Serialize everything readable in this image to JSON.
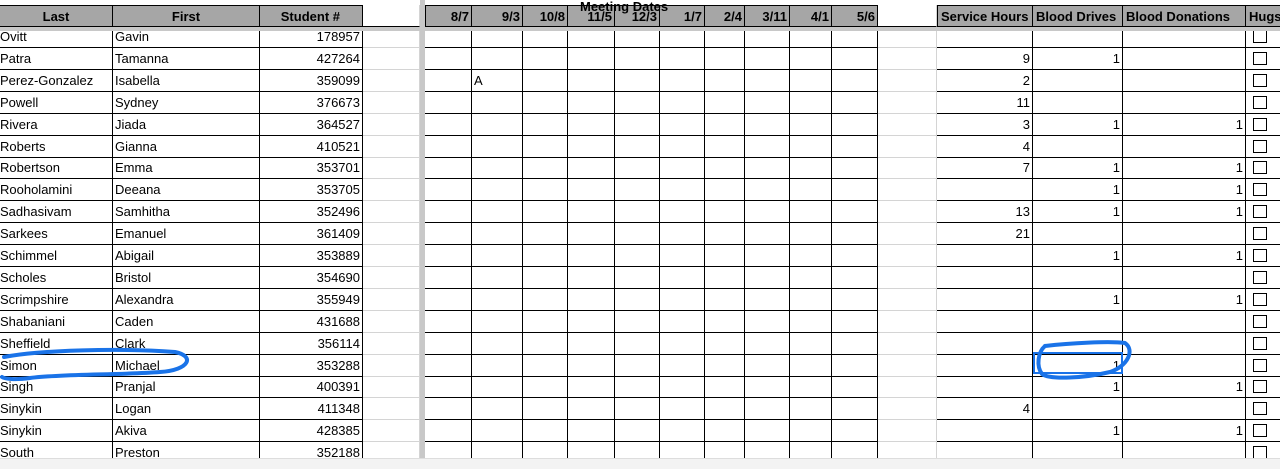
{
  "header": {
    "group_title": "Meeting Dates",
    "last": "Last",
    "first": "First",
    "student": "Student #",
    "dates": [
      "8/7",
      "9/3",
      "10/8",
      "11/5",
      "12/3",
      "1/7",
      "2/4",
      "3/11",
      "4/1",
      "5/6"
    ],
    "service_hours": "Service Hours",
    "blood_drives": "Blood Drives",
    "blood_donations": "Blood Donations",
    "hugs": "Hugs"
  },
  "rows": [
    {
      "last": "Ovitt",
      "first": "Gavin",
      "id": "178957",
      "att": {},
      "hours": "",
      "drives": "",
      "donations": ""
    },
    {
      "last": "Patra",
      "first": "Tamanna",
      "id": "427264",
      "att": {},
      "hours": "9",
      "drives": "1",
      "donations": ""
    },
    {
      "last": "Perez-Gonzalez",
      "first": "Isabella",
      "id": "359099",
      "att": {
        "9/3": "A"
      },
      "hours": "2",
      "drives": "",
      "donations": ""
    },
    {
      "last": "Powell",
      "first": "Sydney",
      "id": "376673",
      "att": {},
      "hours": "11",
      "drives": "",
      "donations": ""
    },
    {
      "last": "Rivera",
      "first": "Jiada",
      "id": "364527",
      "att": {},
      "hours": "3",
      "drives": "1",
      "donations": "1"
    },
    {
      "last": "Roberts",
      "first": "Gianna",
      "id": "410521",
      "att": {},
      "hours": "4",
      "drives": "",
      "donations": ""
    },
    {
      "last": "Robertson",
      "first": "Emma",
      "id": "353701",
      "att": {},
      "hours": "7",
      "drives": "1",
      "donations": "1"
    },
    {
      "last": "Rooholamini",
      "first": "Deeana",
      "id": "353705",
      "att": {},
      "hours": "",
      "drives": "1",
      "donations": "1"
    },
    {
      "last": "Sadhasivam",
      "first": "Samhitha",
      "id": "352496",
      "att": {},
      "hours": "13",
      "drives": "1",
      "donations": "1"
    },
    {
      "last": "Sarkees",
      "first": "Emanuel",
      "id": "361409",
      "att": {},
      "hours": "21",
      "drives": "",
      "donations": ""
    },
    {
      "last": "Schimmel",
      "first": "Abigail",
      "id": "353889",
      "att": {},
      "hours": "",
      "drives": "1",
      "donations": "1"
    },
    {
      "last": "Scholes",
      "first": "Bristol",
      "id": "354690",
      "att": {},
      "hours": "",
      "drives": "",
      "donations": ""
    },
    {
      "last": "Scrimpshire",
      "first": "Alexandra",
      "id": "355949",
      "att": {},
      "hours": "",
      "drives": "1",
      "donations": "1"
    },
    {
      "last": "Shabaniani",
      "first": "Caden",
      "id": "431688",
      "att": {},
      "hours": "",
      "drives": "",
      "donations": ""
    },
    {
      "last": "Sheffield",
      "first": "Clark",
      "id": "356114",
      "att": {},
      "hours": "",
      "drives": "",
      "donations": ""
    },
    {
      "last": "Simon",
      "first": "Michael",
      "id": "353288",
      "att": {},
      "hours": "",
      "drives": "1",
      "donations": ""
    },
    {
      "last": "Singh",
      "first": "Pranjal",
      "id": "400391",
      "att": {},
      "hours": "",
      "drives": "1",
      "donations": "1"
    },
    {
      "last": "Sinykin",
      "first": "Logan",
      "id": "411348",
      "att": {},
      "hours": "4",
      "drives": "",
      "donations": ""
    },
    {
      "last": "Sinykin",
      "first": "Akiva",
      "id": "428385",
      "att": {},
      "hours": "",
      "drives": "1",
      "donations": "1"
    },
    {
      "last": "South",
      "first": "Preston",
      "id": "352188",
      "att": {},
      "hours": "",
      "drives": "",
      "donations": ""
    }
  ],
  "colors": {
    "header_bg": "#a6a6a6",
    "annotation": "#1a73e8",
    "selection": "#1a73e8"
  }
}
